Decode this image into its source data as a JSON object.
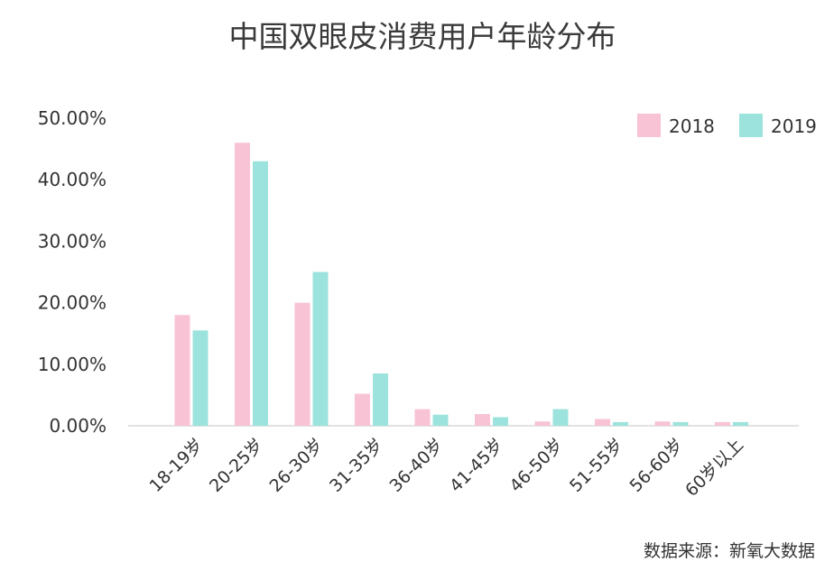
{
  "chart_data": {
    "type": "bar",
    "title": "中国双眼皮消费用户年龄分布",
    "categories": [
      "18-19岁",
      "20-25岁",
      "26-30岁",
      "31-35岁",
      "36-40岁",
      "41-45岁",
      "46-50岁",
      "51-55岁",
      "56-60岁",
      "60岁以上"
    ],
    "series": [
      {
        "name": "2018",
        "color": "#f7c3d5",
        "values": [
          18.0,
          46.0,
          20.0,
          5.2,
          2.7,
          1.9,
          0.7,
          1.1,
          0.7,
          0.6
        ]
      },
      {
        "name": "2019",
        "color": "#9be3dc",
        "values": [
          15.5,
          43.0,
          25.0,
          8.5,
          1.8,
          1.4,
          2.7,
          0.6,
          0.6,
          0.6
        ]
      }
    ],
    "yticks": [
      "0.00%",
      "10.00%",
      "20.00%",
      "30.00%",
      "40.00%",
      "50.00%"
    ],
    "ylim": [
      0,
      50
    ],
    "xlabel": "",
    "ylabel": "",
    "grid": false,
    "legend_position": "top-right",
    "source": "数据来源：新氧大数据"
  }
}
